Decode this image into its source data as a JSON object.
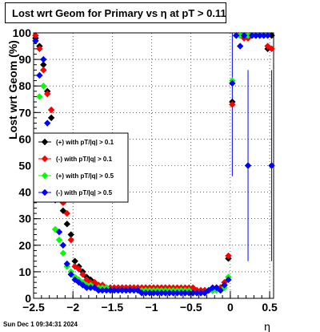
{
  "chart_data": {
    "type": "scatter",
    "title": "Lost wrt Geom for Primary vs  η  at pT > 0.11",
    "xlabel": "η",
    "ylabel": "Lost wrt Geom (%)",
    "xlim": [
      -2.5,
      0.55
    ],
    "ylim": [
      0,
      100
    ],
    "xticks": [
      -2.5,
      -2,
      -1.5,
      -1,
      -0.5,
      0,
      0.5
    ],
    "xtick_labels": [
      "−2.5",
      "−2",
      "−1.5",
      "−1",
      "−0.5",
      "0",
      "0.5"
    ],
    "yticks": [
      0,
      10,
      20,
      30,
      40,
      50,
      60,
      70,
      80,
      90,
      100
    ],
    "ytick_labels": [
      "0",
      "10",
      "20",
      "30",
      "40",
      "50",
      "60",
      "70",
      "80",
      "90",
      "100"
    ],
    "grid": true,
    "legend_position": "left-middle",
    "series": [
      {
        "name": "(+) with pT/|q| > 0.1",
        "color": "#000000",
        "points": [
          [
            -2.475,
            98
          ],
          [
            -2.425,
            95
          ],
          [
            -2.375,
            88
          ],
          [
            -2.325,
            78
          ],
          [
            -2.275,
            68
          ],
          [
            -2.225,
            48
          ],
          [
            -2.175,
            40
          ],
          [
            -2.125,
            33
          ],
          [
            -2.075,
            28
          ],
          [
            -2.025,
            24
          ],
          [
            -1.975,
            14
          ],
          [
            -1.925,
            12
          ],
          [
            -1.875,
            10
          ],
          [
            -1.825,
            8
          ],
          [
            -1.775,
            7
          ],
          [
            -1.725,
            6
          ],
          [
            -1.675,
            5
          ],
          [
            -1.625,
            5
          ],
          [
            -1.575,
            4
          ],
          [
            -1.525,
            4
          ],
          [
            -1.475,
            4
          ],
          [
            -1.425,
            4
          ],
          [
            -1.375,
            4
          ],
          [
            -1.325,
            4
          ],
          [
            -1.275,
            4
          ],
          [
            -1.225,
            4
          ],
          [
            -1.175,
            4
          ],
          [
            -1.125,
            4
          ],
          [
            -1.075,
            4
          ],
          [
            -1.025,
            4
          ],
          [
            -0.975,
            4
          ],
          [
            -0.925,
            4
          ],
          [
            -0.875,
            4
          ],
          [
            -0.825,
            4
          ],
          [
            -0.775,
            4
          ],
          [
            -0.725,
            3
          ],
          [
            -0.675,
            3
          ],
          [
            -0.625,
            3
          ],
          [
            -0.575,
            3
          ],
          [
            -0.525,
            3
          ],
          [
            -0.475,
            3
          ],
          [
            -0.425,
            3
          ],
          [
            -0.375,
            3
          ],
          [
            -0.325,
            3
          ],
          [
            -0.275,
            3
          ],
          [
            -0.225,
            3
          ],
          [
            -0.175,
            4
          ],
          [
            -0.125,
            4
          ],
          [
            -0.075,
            5
          ],
          [
            -0.025,
            15
          ],
          [
            0.025,
            74
          ],
          [
            0.075,
            99
          ],
          [
            0.125,
            99
          ],
          [
            0.175,
            99
          ],
          [
            0.225,
            99
          ],
          [
            0.275,
            99
          ],
          [
            0.325,
            99
          ],
          [
            0.375,
            99
          ],
          [
            0.425,
            99
          ],
          [
            0.475,
            94
          ],
          [
            0.525,
            99
          ]
        ]
      },
      {
        "name": "(-) with pT/|q| > 0.1",
        "color": "#ff0000",
        "points": [
          [
            -2.475,
            99
          ],
          [
            -2.425,
            94
          ],
          [
            -2.375,
            86
          ],
          [
            -2.325,
            77
          ],
          [
            -2.275,
            71
          ],
          [
            -2.225,
            46
          ],
          [
            -2.175,
            38
          ],
          [
            -2.125,
            36
          ],
          [
            -2.075,
            32
          ],
          [
            -2.025,
            22
          ],
          [
            -1.975,
            12
          ],
          [
            -1.925,
            11
          ],
          [
            -1.875,
            9
          ],
          [
            -1.825,
            7
          ],
          [
            -1.775,
            6
          ],
          [
            -1.725,
            6
          ],
          [
            -1.675,
            5
          ],
          [
            -1.625,
            5
          ],
          [
            -1.575,
            4
          ],
          [
            -1.525,
            4
          ],
          [
            -1.475,
            4
          ],
          [
            -1.425,
            4
          ],
          [
            -1.375,
            4
          ],
          [
            -1.325,
            4
          ],
          [
            -1.275,
            4
          ],
          [
            -1.225,
            4
          ],
          [
            -1.175,
            4
          ],
          [
            -1.125,
            4
          ],
          [
            -1.075,
            4
          ],
          [
            -1.025,
            4
          ],
          [
            -0.975,
            4
          ],
          [
            -0.925,
            4
          ],
          [
            -0.875,
            4
          ],
          [
            -0.825,
            4
          ],
          [
            -0.775,
            4
          ],
          [
            -0.725,
            4
          ],
          [
            -0.675,
            4
          ],
          [
            -0.625,
            4
          ],
          [
            -0.575,
            4
          ],
          [
            -0.525,
            4
          ],
          [
            -0.475,
            4
          ],
          [
            -0.425,
            3
          ],
          [
            -0.375,
            3
          ],
          [
            -0.325,
            3
          ],
          [
            -0.275,
            3
          ],
          [
            -0.225,
            3
          ],
          [
            -0.175,
            4
          ],
          [
            -0.125,
            4
          ],
          [
            -0.075,
            6
          ],
          [
            -0.025,
            16
          ],
          [
            0.025,
            73
          ],
          [
            0.075,
            99
          ],
          [
            0.125,
            99
          ],
          [
            0.175,
            98
          ],
          [
            0.225,
            98
          ],
          [
            0.275,
            99
          ],
          [
            0.325,
            99
          ],
          [
            0.375,
            99
          ],
          [
            0.425,
            99
          ],
          [
            0.475,
            95
          ],
          [
            0.525,
            94
          ]
        ]
      },
      {
        "name": "(+) with pT/|q| > 0.5",
        "color": "#00ff00",
        "points": [
          [
            -2.475,
            97
          ],
          [
            -2.425,
            76
          ],
          [
            -2.375,
            80
          ],
          [
            -2.325,
            60
          ],
          [
            -2.275,
            38
          ],
          [
            -2.225,
            26
          ],
          [
            -2.175,
            22
          ],
          [
            -2.125,
            17
          ],
          [
            -2.075,
            12
          ],
          [
            -2.025,
            10
          ],
          [
            -1.975,
            8
          ],
          [
            -1.925,
            7
          ],
          [
            -1.875,
            6
          ],
          [
            -1.825,
            5
          ],
          [
            -1.775,
            5
          ],
          [
            -1.725,
            4
          ],
          [
            -1.675,
            4
          ],
          [
            -1.625,
            4
          ],
          [
            -1.575,
            4
          ],
          [
            -1.525,
            3
          ],
          [
            -1.475,
            3
          ],
          [
            -1.425,
            3
          ],
          [
            -1.375,
            3
          ],
          [
            -1.325,
            3
          ],
          [
            -1.275,
            3
          ],
          [
            -1.225,
            3
          ],
          [
            -1.175,
            3
          ],
          [
            -1.125,
            3
          ],
          [
            -1.075,
            3
          ],
          [
            -1.025,
            3
          ],
          [
            -0.975,
            3
          ],
          [
            -0.925,
            3
          ],
          [
            -0.875,
            3
          ],
          [
            -0.825,
            3
          ],
          [
            -0.775,
            3
          ],
          [
            -0.725,
            3
          ],
          [
            -0.675,
            3
          ],
          [
            -0.625,
            3
          ],
          [
            -0.575,
            3
          ],
          [
            -0.525,
            3
          ],
          [
            -0.475,
            2
          ],
          [
            -0.425,
            2
          ],
          [
            -0.375,
            2
          ],
          [
            -0.325,
            2
          ],
          [
            -0.275,
            3
          ],
          [
            -0.225,
            3
          ],
          [
            -0.175,
            3
          ],
          [
            -0.125,
            3
          ],
          [
            -0.075,
            4
          ],
          [
            -0.025,
            8
          ],
          [
            0.025,
            82
          ],
          [
            0.075,
            99
          ],
          [
            0.125,
            99
          ],
          [
            0.175,
            99
          ],
          [
            0.225,
            99
          ],
          [
            0.275,
            99
          ],
          [
            0.325,
            99
          ],
          [
            0.375,
            99
          ],
          [
            0.425,
            99
          ]
        ]
      },
      {
        "name": "(-) with pT/|q| > 0.5",
        "color": "#0000ff",
        "points": [
          [
            -2.475,
            97
          ],
          [
            -2.425,
            84
          ],
          [
            -2.375,
            90
          ],
          [
            -2.325,
            66
          ],
          [
            -2.275,
            45
          ],
          [
            -2.225,
            37
          ],
          [
            -2.175,
            25
          ],
          [
            -2.125,
            20
          ],
          [
            -2.075,
            13
          ],
          [
            -2.025,
            9
          ],
          [
            -1.975,
            7
          ],
          [
            -1.925,
            6
          ],
          [
            -1.875,
            5
          ],
          [
            -1.825,
            4
          ],
          [
            -1.775,
            4
          ],
          [
            -1.725,
            4
          ],
          [
            -1.675,
            3
          ],
          [
            -1.625,
            3
          ],
          [
            -1.575,
            3
          ],
          [
            -1.525,
            3
          ],
          [
            -1.475,
            3
          ],
          [
            -1.425,
            3
          ],
          [
            -1.375,
            3
          ],
          [
            -1.325,
            3
          ],
          [
            -1.275,
            3
          ],
          [
            -1.225,
            3
          ],
          [
            -1.175,
            3
          ],
          [
            -1.125,
            2
          ],
          [
            -1.075,
            2
          ],
          [
            -1.025,
            2
          ],
          [
            -0.975,
            2
          ],
          [
            -0.925,
            2
          ],
          [
            -0.875,
            2
          ],
          [
            -0.825,
            2
          ],
          [
            -0.775,
            2
          ],
          [
            -0.725,
            2
          ],
          [
            -0.675,
            2
          ],
          [
            -0.625,
            2
          ],
          [
            -0.575,
            2
          ],
          [
            -0.525,
            2
          ],
          [
            -0.475,
            2
          ],
          [
            -0.425,
            2
          ],
          [
            -0.375,
            2
          ],
          [
            -0.325,
            2
          ],
          [
            -0.275,
            3
          ],
          [
            -0.225,
            4
          ],
          [
            -0.175,
            4
          ],
          [
            -0.125,
            3
          ],
          [
            -0.075,
            5
          ],
          [
            -0.025,
            7
          ],
          [
            0.025,
            81
          ],
          [
            0.075,
            99
          ],
          [
            0.125,
            95
          ],
          [
            0.175,
            99
          ],
          [
            0.225,
            50
          ],
          [
            0.275,
            99
          ],
          [
            0.325,
            99
          ],
          [
            0.375,
            99
          ],
          [
            0.425,
            99
          ],
          [
            0.475,
            99
          ],
          [
            0.525,
            50
          ]
        ],
        "errors": [
          [
            0.225,
            14,
            86
          ],
          [
            0.525,
            14,
            86
          ],
          [
            0.025,
            46,
            100
          ]
        ]
      }
    ]
  },
  "footer": {
    "timestamp": "Sun Dec  1 09:34:31 2024"
  }
}
